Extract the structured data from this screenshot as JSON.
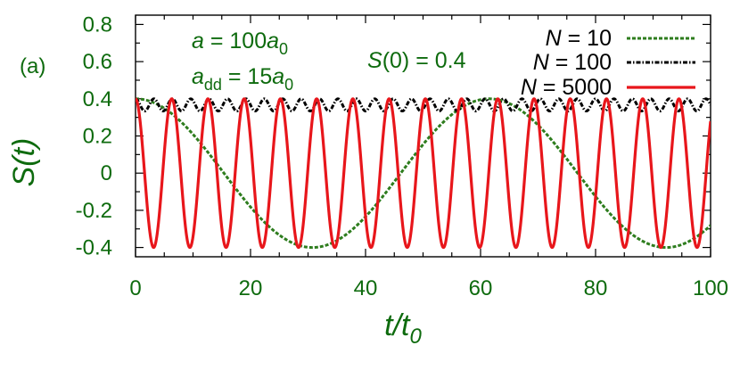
{
  "chart_data": {
    "type": "line",
    "panel_label": "(a)",
    "xlabel": {
      "main": "t/t",
      "sub": "0"
    },
    "ylabel": "S(t)",
    "xlim": [
      0,
      100
    ],
    "ylim": [
      -0.45,
      0.85
    ],
    "x_ticks": [
      0,
      20,
      40,
      60,
      80,
      100
    ],
    "x_tick_labels": [
      "0",
      "20",
      "40",
      "60",
      "80",
      "100"
    ],
    "y_ticks": [
      -0.4,
      -0.2,
      0,
      0.2,
      0.4,
      0.6,
      0.8
    ],
    "y_tick_labels": [
      "-0.4",
      "-0.2",
      "0",
      "0.2",
      "0.4",
      "0.6",
      "0.8"
    ],
    "annotations": {
      "a": {
        "pre": "a",
        "mid": " = 100",
        "italic2": "a",
        "sub": "0"
      },
      "add": {
        "pre": "a",
        "presub": "dd",
        "mid": " = 15",
        "italic2": "a",
        "sub": "0"
      },
      "s0": {
        "pre": "S",
        "rest": "(0) = 0.4"
      }
    },
    "legend_position": "top-right",
    "series": [
      {
        "name": "N = 10",
        "legend_italic": "N",
        "legend_rest": " = 10",
        "color": "#2e7d1e",
        "style": "dashed",
        "amplitude": 0.4,
        "center": 0.0,
        "period": 61.5
      },
      {
        "name": "N = 100",
        "legend_italic": "N",
        "legend_rest": " = 100",
        "color": "#000000",
        "style": "dash-dot",
        "amplitude": 0.033,
        "center": 0.367,
        "period": 3.2
      },
      {
        "name": "N = 5000",
        "legend_italic": "N",
        "legend_rest": " = 5000",
        "color": "#e8161b",
        "style": "solid",
        "amplitude": 0.4,
        "center": 0.0,
        "period": 6.3
      }
    ]
  }
}
